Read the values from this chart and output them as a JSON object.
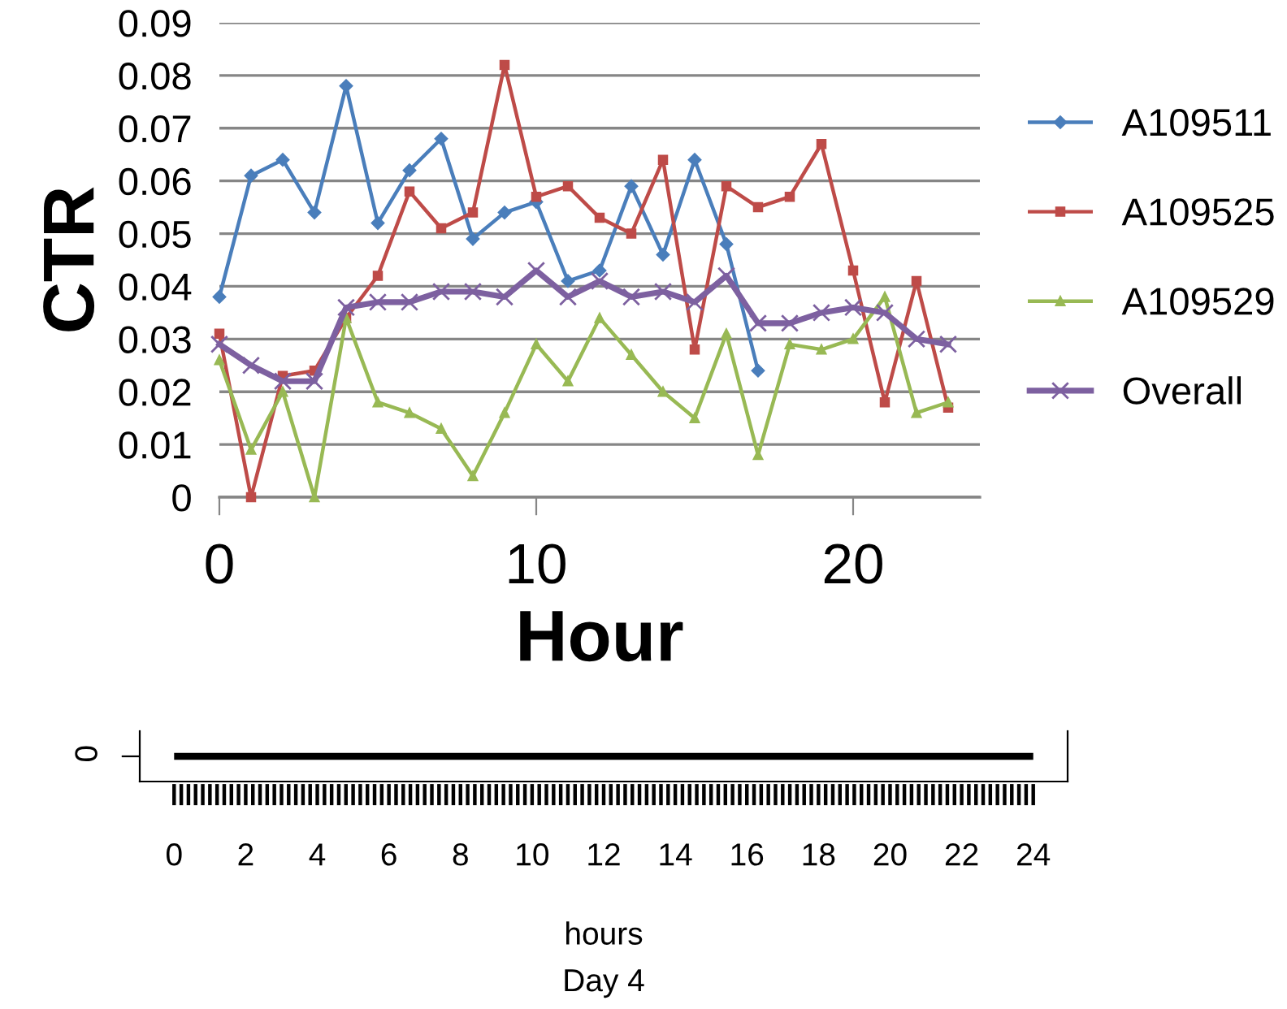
{
  "chart_data": [
    {
      "type": "line",
      "xlabel": "Hour",
      "ylabel": "CTR",
      "x": [
        0,
        1,
        2,
        3,
        4,
        5,
        6,
        7,
        8,
        9,
        10,
        11,
        12,
        13,
        14,
        15,
        16,
        17,
        18,
        19,
        20,
        21,
        22,
        23
      ],
      "series": [
        {
          "name": "A109511",
          "color": "#4a7ebb",
          "marker": "diamond",
          "values": [
            0.038,
            0.061,
            0.064,
            0.054,
            0.078,
            0.052,
            0.062,
            0.068,
            0.049,
            0.054,
            0.056,
            0.041,
            0.043,
            0.059,
            0.046,
            0.064,
            0.048,
            0.024,
            null,
            null,
            null,
            null,
            null,
            null
          ]
        },
        {
          "name": "A109525",
          "color": "#be4b48",
          "marker": "square",
          "values": [
            0.031,
            0,
            0.023,
            0.024,
            0.034,
            0.042,
            0.058,
            0.051,
            0.054,
            0.082,
            0.057,
            0.059,
            0.053,
            0.05,
            0.064,
            0.028,
            0.059,
            0.055,
            0.057,
            0.067,
            0.043,
            0.018,
            0.041,
            0.017
          ]
        },
        {
          "name": "A109529",
          "color": "#98b954",
          "marker": "triangle",
          "values": [
            0.026,
            0.009,
            0.02,
            0,
            0.034,
            0.018,
            0.016,
            0.013,
            0.004,
            0.016,
            0.029,
            0.022,
            0.034,
            0.027,
            0.02,
            0.015,
            0.031,
            0.008,
            0.029,
            0.028,
            0.03,
            0.038,
            0.016,
            0.018
          ]
        },
        {
          "name": "Overall",
          "color": "#7d60a0",
          "marker": "cross",
          "values": [
            0.029,
            0.025,
            0.022,
            0.022,
            0.036,
            0.037,
            0.037,
            0.039,
            0.039,
            0.038,
            0.043,
            0.038,
            0.041,
            0.038,
            0.039,
            0.037,
            0.042,
            0.033,
            0.033,
            0.035,
            0.036,
            0.035,
            0.03,
            0.029
          ]
        }
      ],
      "xlim": [
        0,
        24
      ],
      "xticks": [
        0,
        10,
        20
      ],
      "ylim": [
        0,
        0.09
      ],
      "yticks": [
        0,
        0.01,
        0.02,
        0.03,
        0.04,
        0.05,
        0.06,
        0.07,
        0.08,
        0.09
      ],
      "grid": "y",
      "legend": "right"
    },
    {
      "type": "bar",
      "orientation": "horizontal",
      "xlabel": "hours",
      "annotations": [
        "Day 4"
      ],
      "categories": [
        "0"
      ],
      "base": [
        0
      ],
      "values": [
        24
      ],
      "color": "#000000",
      "xlim": [
        -0.96,
        24.96
      ],
      "xticks": [
        0,
        2,
        4,
        6,
        8,
        10,
        12,
        14,
        16,
        18,
        20,
        22,
        24
      ]
    }
  ]
}
